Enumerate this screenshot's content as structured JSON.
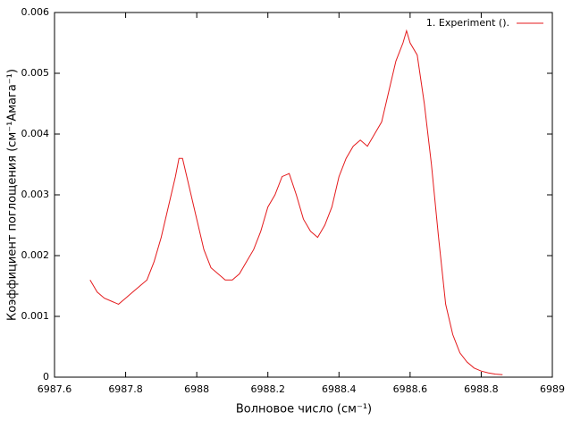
{
  "chart_data": {
    "type": "line",
    "x_label": "Волновое число (см⁻¹)",
    "y_label": "Коэффициент поглощения (см⁻¹Амага⁻¹)",
    "series": [
      {
        "name": "1. Experiment ().",
        "color": "#e41a1c",
        "x": [
          6987.7,
          6987.72,
          6987.74,
          6987.76,
          6987.78,
          6987.8,
          6987.82,
          6987.84,
          6987.86,
          6987.88,
          6987.9,
          6987.92,
          6987.94,
          6987.95,
          6987.96,
          6987.98,
          6988.0,
          6988.02,
          6988.04,
          6988.06,
          6988.08,
          6988.1,
          6988.12,
          6988.14,
          6988.16,
          6988.18,
          6988.2,
          6988.22,
          6988.24,
          6988.26,
          6988.28,
          6988.3,
          6988.32,
          6988.34,
          6988.36,
          6988.38,
          6988.4,
          6988.42,
          6988.44,
          6988.46,
          6988.48,
          6988.5,
          6988.52,
          6988.54,
          6988.56,
          6988.58,
          6988.59,
          6988.6,
          6988.62,
          6988.64,
          6988.66,
          6988.68,
          6988.7,
          6988.72,
          6988.74,
          6988.76,
          6988.78,
          6988.8,
          6988.82,
          6988.84,
          6988.86
        ],
        "values": [
          0.0016,
          0.0014,
          0.0013,
          0.00125,
          0.0012,
          0.0013,
          0.0014,
          0.0015,
          0.0016,
          0.0019,
          0.0023,
          0.0028,
          0.0033,
          0.0036,
          0.0036,
          0.0031,
          0.0026,
          0.0021,
          0.0018,
          0.0017,
          0.0016,
          0.0016,
          0.0017,
          0.0019,
          0.0021,
          0.0024,
          0.0028,
          0.003,
          0.0033,
          0.00335,
          0.003,
          0.0026,
          0.0024,
          0.0023,
          0.0025,
          0.0028,
          0.0033,
          0.0036,
          0.0038,
          0.0039,
          0.0038,
          0.004,
          0.0042,
          0.0047,
          0.0052,
          0.0055,
          0.0057,
          0.0055,
          0.0053,
          0.0045,
          0.0035,
          0.0023,
          0.0012,
          0.0007,
          0.0004,
          0.00025,
          0.00015,
          0.0001,
          7e-05,
          5e-05,
          4e-05
        ]
      }
    ],
    "xlim": [
      6987.6,
      6989
    ],
    "ylim": [
      0,
      0.006
    ],
    "xticks": [
      6987.6,
      6987.8,
      6988,
      6988.2,
      6988.4,
      6988.6,
      6988.8,
      6989
    ],
    "yticks": [
      0,
      0.001,
      0.002,
      0.003,
      0.004,
      0.005,
      0.006
    ],
    "legend": "top-right",
    "grid": false
  }
}
